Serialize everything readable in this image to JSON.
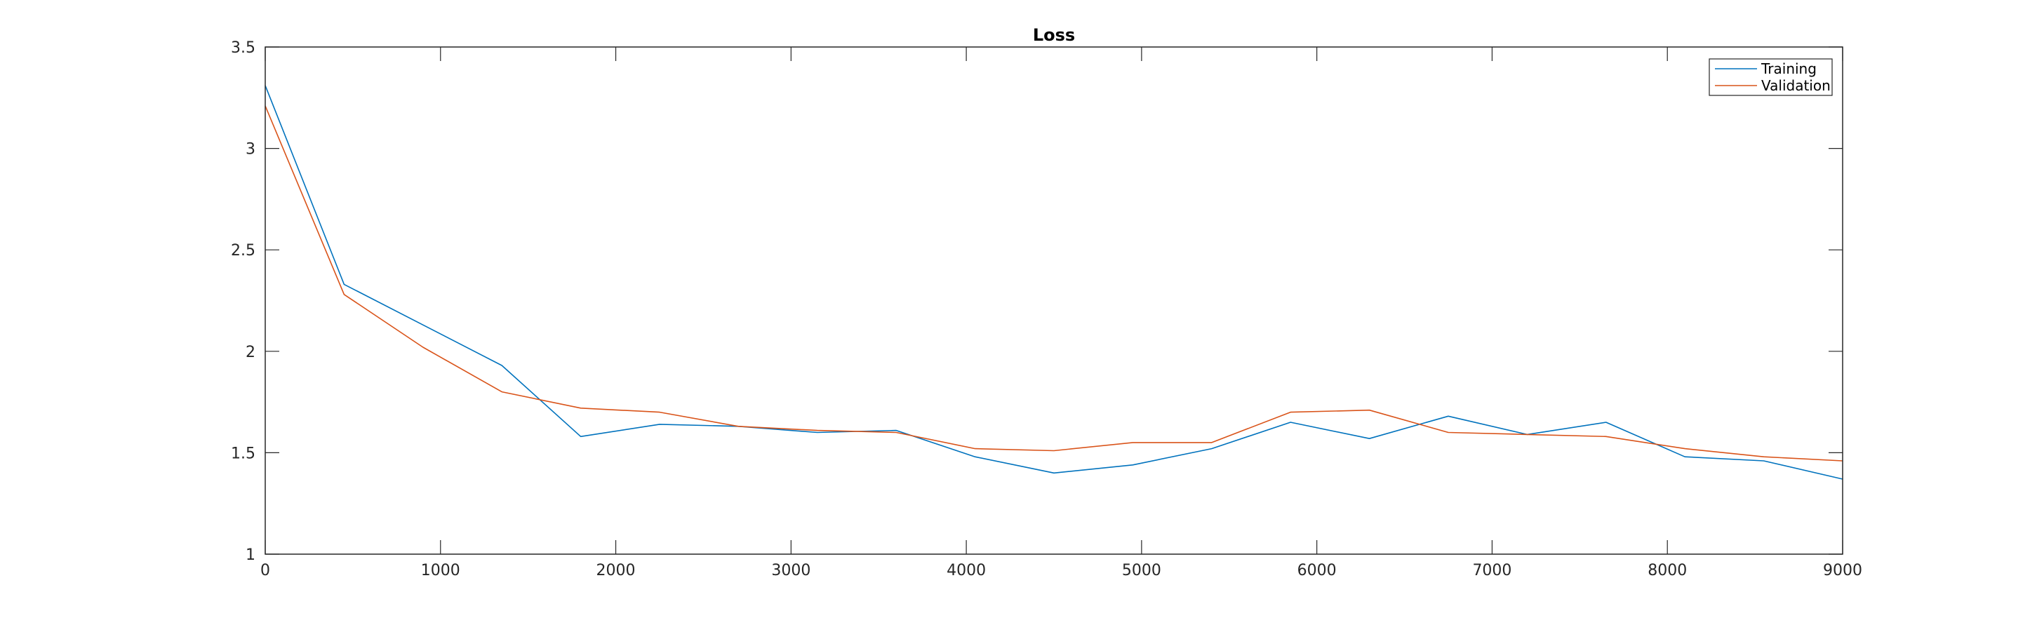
{
  "chart_data": {
    "type": "line",
    "title": "Loss",
    "xlabel": "",
    "ylabel": "",
    "xlim": [
      0,
      9000
    ],
    "ylim": [
      1,
      3.5
    ],
    "xticks": [
      0,
      1000,
      2000,
      3000,
      4000,
      5000,
      6000,
      7000,
      8000,
      9000
    ],
    "yticks": [
      1,
      1.5,
      2,
      2.5,
      3,
      3.5
    ],
    "xtick_labels": [
      "0",
      "1000",
      "2000",
      "3000",
      "4000",
      "5000",
      "6000",
      "7000",
      "8000",
      "9000"
    ],
    "ytick_labels": [
      "1",
      "1.5",
      "2",
      "2.5",
      "3",
      "3.5"
    ],
    "grid": false,
    "legend_position": "top-right",
    "x": [
      0,
      450,
      900,
      1350,
      1800,
      2250,
      2700,
      3150,
      3600,
      4050,
      4500,
      4950,
      5400,
      5850,
      6300,
      6750,
      7200,
      7650,
      8100,
      8550,
      9000
    ],
    "series": [
      {
        "name": "Training",
        "color": "#0072BD",
        "values": [
          3.31,
          2.33,
          2.13,
          1.93,
          1.58,
          1.64,
          1.63,
          1.6,
          1.61,
          1.48,
          1.4,
          1.44,
          1.52,
          1.65,
          1.57,
          1.68,
          1.59,
          1.65,
          1.48,
          1.46,
          1.37
        ]
      },
      {
        "name": "Validation",
        "color": "#D95319",
        "values": [
          3.21,
          2.28,
          2.02,
          1.8,
          1.72,
          1.7,
          1.63,
          1.61,
          1.6,
          1.52,
          1.51,
          1.55,
          1.55,
          1.7,
          1.71,
          1.6,
          1.59,
          1.58,
          1.52,
          1.48,
          1.46
        ]
      }
    ]
  }
}
